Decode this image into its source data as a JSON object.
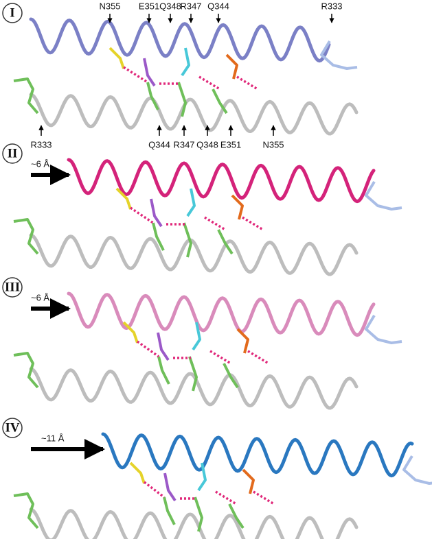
{
  "panels": [
    {
      "label": "I",
      "top_labels": [
        "N355",
        "E351",
        "Q348",
        "R347",
        "Q344",
        "R333"
      ],
      "bottom_labels": [
        "R333",
        "Q344",
        "R347",
        "Q348",
        "E351",
        "N355"
      ]
    },
    {
      "label": "II",
      "shift": "~6 Å"
    },
    {
      "label": "III",
      "shift": "~6 Å"
    },
    {
      "label": "IV",
      "shift": "~11 Å"
    }
  ]
}
